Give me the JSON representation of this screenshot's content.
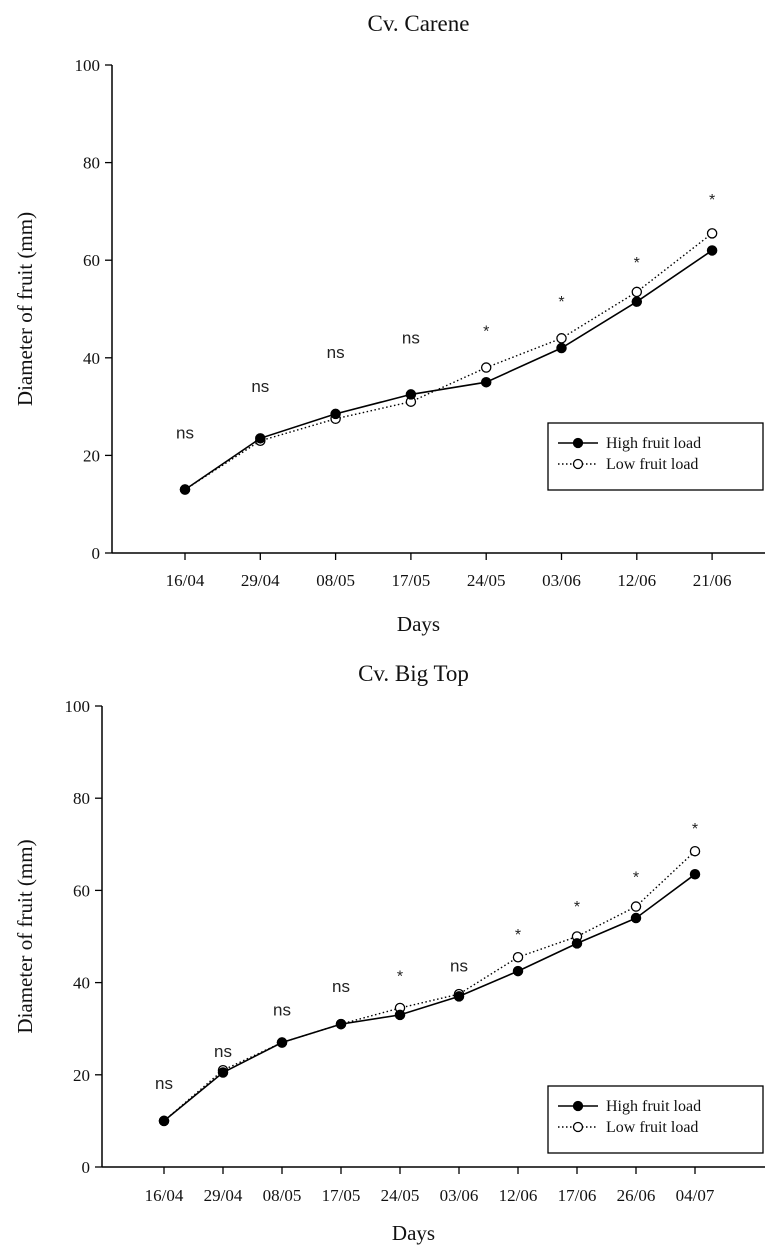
{
  "chart_data": [
    {
      "type": "line",
      "title": "Cv. Carene",
      "xlabel": "Days",
      "ylabel": "Diameter of fruit (mm)",
      "ylim": [
        0,
        100
      ],
      "yticks": [
        "0",
        "20",
        "40",
        "60",
        "80",
        "100"
      ],
      "grid": false,
      "legend_position": "bottom-right",
      "categories": [
        "16/04",
        "29/04",
        "08/05",
        "17/05",
        "24/05",
        "03/06",
        "12/06",
        "21/06"
      ],
      "series": [
        {
          "name": "High fruit load",
          "marker": "filled-circle",
          "line": "solid",
          "color": "#000000",
          "values": [
            13,
            23.5,
            28.5,
            32.5,
            35,
            42,
            51.5,
            62
          ]
        },
        {
          "name": "Low fruit load",
          "marker": "open-circle",
          "line": "dotted",
          "color": "#000000",
          "values": [
            13,
            23,
            27.5,
            31,
            38,
            44,
            53.5,
            65.5
          ]
        }
      ],
      "annotations": [
        {
          "category": "16/04",
          "text": "ns",
          "y": 24.5
        },
        {
          "category": "29/04",
          "text": "ns",
          "y": 34
        },
        {
          "category": "08/05",
          "text": "ns",
          "y": 41
        },
        {
          "category": "17/05",
          "text": "ns",
          "y": 44
        },
        {
          "category": "24/05",
          "text": "*",
          "y": 46
        },
        {
          "category": "03/06",
          "text": "*",
          "y": 52
        },
        {
          "category": "12/06",
          "text": "*",
          "y": 60
        },
        {
          "category": "21/06",
          "text": "*",
          "y": 73
        }
      ]
    },
    {
      "type": "line",
      "title": "Cv. Big Top",
      "xlabel": "Days",
      "ylabel": "Diameter of fruit  (mm)",
      "ylim": [
        0,
        100
      ],
      "yticks": [
        "0",
        "20",
        "40",
        "60",
        "80",
        "100"
      ],
      "grid": false,
      "legend_position": "bottom-right",
      "categories": [
        "16/04",
        "29/04",
        "08/05",
        "17/05",
        "24/05",
        "03/06",
        "12/06",
        "17/06",
        "26/06",
        "04/07"
      ],
      "series": [
        {
          "name": "High fruit load",
          "marker": "filled-circle",
          "line": "solid",
          "color": "#000000",
          "values": [
            10,
            20.5,
            27,
            31,
            33,
            37,
            42.5,
            48.5,
            54,
            63.5
          ]
        },
        {
          "name": "Low fruit load",
          "marker": "open-circle",
          "line": "dotted",
          "color": "#000000",
          "values": [
            10,
            21,
            27,
            31,
            34.5,
            37.5,
            45.5,
            50,
            56.5,
            68.5
          ]
        }
      ],
      "annotations": [
        {
          "category": "16/04",
          "text": "ns",
          "y": 18
        },
        {
          "category": "29/04",
          "text": "ns",
          "y": 25
        },
        {
          "category": "08/05",
          "text": "ns",
          "y": 34
        },
        {
          "category": "17/05",
          "text": "ns",
          "y": 39
        },
        {
          "category": "24/05",
          "text": "*",
          "y": 42
        },
        {
          "category": "03/06",
          "text": "ns",
          "y": 43.5
        },
        {
          "category": "12/06",
          "text": "*",
          "y": 51
        },
        {
          "category": "17/06",
          "text": "*",
          "y": 57
        },
        {
          "category": "26/06",
          "text": "*",
          "y": 63.5
        },
        {
          "category": "04/07",
          "text": "*",
          "y": 74
        }
      ]
    }
  ]
}
